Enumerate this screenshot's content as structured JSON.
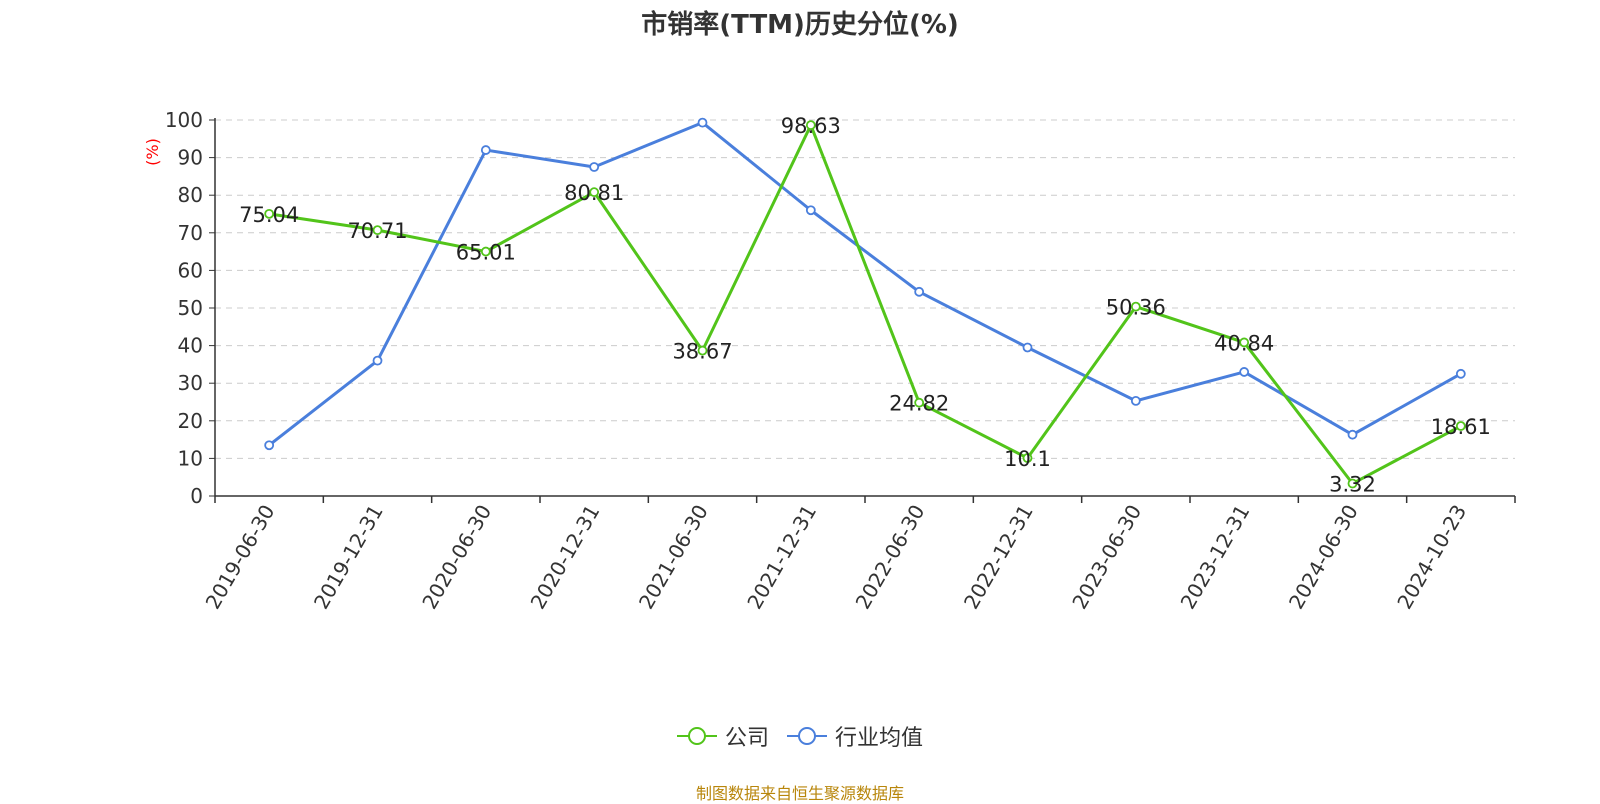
{
  "chart_data": {
    "type": "line",
    "title": "市销率(TTM)历史分位(%)",
    "ylabel": "(%)",
    "xlabel": "",
    "ylim": [
      0,
      100
    ],
    "yticks": [
      "0",
      "10",
      "20",
      "30",
      "40",
      "50",
      "60",
      "70",
      "80",
      "90",
      "100"
    ],
    "grid": true,
    "legend_position": "bottom",
    "categories": [
      "2019-06-30",
      "2019-12-31",
      "2020-06-30",
      "2020-12-31",
      "2021-06-30",
      "2021-12-31",
      "2022-06-30",
      "2022-12-31",
      "2023-06-30",
      "2023-12-31",
      "2024-06-30",
      "2024-10-23"
    ],
    "series": [
      {
        "name": "公司",
        "color": "#52c41a",
        "values": [
          75.04,
          70.71,
          65.01,
          80.81,
          38.67,
          98.63,
          24.82,
          10.1,
          50.36,
          40.84,
          3.32,
          18.61
        ],
        "labels": [
          "75.04",
          "70.71",
          "65.01",
          "80.81",
          "38.67",
          "98.63",
          "24.82",
          "10.1",
          "50.36",
          "40.84",
          "3.32",
          "18.61"
        ]
      },
      {
        "name": "行业均值",
        "color": "#4a7fdc",
        "values": [
          13.5,
          36,
          92,
          87.5,
          99.3,
          76,
          54.3,
          39.5,
          25.3,
          33,
          16.3,
          32.5
        ]
      }
    ],
    "source": "制图数据来自恒生聚源数据库"
  }
}
